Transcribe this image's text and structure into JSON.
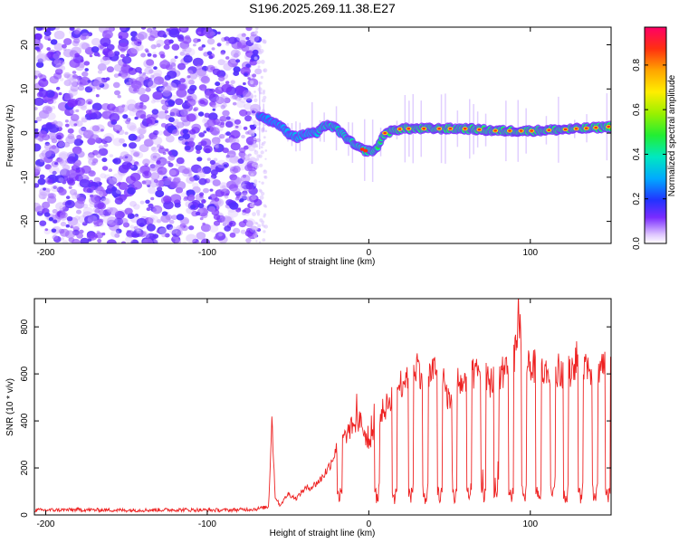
{
  "title": "S196.2025.269.11.38.E27",
  "chart_data": [
    {
      "type": "heatmap",
      "xlabel": "Height of straight line (km)",
      "ylabel": "Frequency (Hz)",
      "xlim": [
        -207,
        150
      ],
      "ylim": [
        -25,
        24
      ],
      "xticks": [
        -200,
        -100,
        0,
        100
      ],
      "yticks": [
        -20,
        -10,
        0,
        10,
        20
      ],
      "xtick_labels": [
        "-200",
        "-100",
        "0",
        "100"
      ],
      "ytick_labels": [
        "-20",
        "-10",
        "0",
        "10",
        "20"
      ],
      "noise_region_x": [
        -207,
        -68
      ],
      "trace": {
        "x": [
          -68,
          -62,
          -56,
          -50,
          -44,
          -38,
          -32,
          -26,
          -20,
          -14,
          -8,
          -2,
          4,
          10,
          20,
          40,
          60,
          80,
          100,
          120,
          140,
          150
        ],
        "freq": [
          4,
          3,
          2,
          0,
          -1,
          0,
          0,
          2,
          1,
          -1,
          -3,
          -4,
          -4,
          0,
          1,
          1,
          1,
          0.5,
          0.5,
          0.8,
          1.2,
          1.5
        ],
        "amplitude": [
          0.25,
          0.3,
          0.35,
          0.4,
          0.45,
          0.45,
          0.5,
          0.55,
          0.5,
          0.55,
          0.6,
          0.7,
          0.75,
          0.8,
          0.85,
          0.85,
          0.85,
          0.85,
          0.85,
          0.85,
          0.85,
          0.85
        ]
      },
      "colorbar": {
        "label": "Normalized spectral amplitude",
        "range": [
          0,
          0.97
        ],
        "ticks": [
          "0.0",
          "0.2",
          "0.4",
          "0.6",
          "0.8"
        ],
        "tick_values": [
          0.0,
          0.2,
          0.4,
          0.6,
          0.8
        ]
      }
    },
    {
      "type": "line",
      "xlabel": "Height of straight line (km)",
      "ylabel": "SNR (10 * v/v)",
      "xlim": [
        -207,
        150
      ],
      "ylim": [
        0,
        920
      ],
      "xticks": [
        -200,
        -100,
        0,
        100
      ],
      "yticks": [
        0,
        200,
        400,
        600,
        800
      ],
      "xtick_labels": [
        "-200",
        "-100",
        "0",
        "100"
      ],
      "ytick_labels": [
        "0",
        "200",
        "400",
        "600",
        "800"
      ],
      "color": "#ee2222",
      "series": [
        {
          "name": "SNR",
          "x": [
            -207,
            -180,
            -150,
            -120,
            -90,
            -70,
            -62,
            -60,
            -58,
            -55,
            -50,
            -45,
            -40,
            -35,
            -30,
            -25,
            -20,
            -15,
            -10,
            -5,
            0,
            5,
            10,
            15,
            20,
            25,
            30,
            35,
            40,
            45,
            50,
            55,
            60,
            65,
            70,
            75,
            80,
            85,
            90,
            93,
            95,
            100,
            105,
            110,
            115,
            120,
            125,
            130,
            135,
            140,
            145,
            150
          ],
          "y": [
            20,
            22,
            20,
            22,
            20,
            25,
            35,
            420,
            80,
            40,
            90,
            70,
            110,
            120,
            150,
            200,
            280,
            330,
            380,
            400,
            290,
            420,
            450,
            520,
            560,
            610,
            640,
            560,
            620,
            580,
            480,
            560,
            560,
            600,
            600,
            560,
            590,
            600,
            650,
            880,
            700,
            640,
            620,
            600,
            630,
            580,
            620,
            680,
            640,
            600,
            650,
            600
          ],
          "dips_x": [
            -18,
            5,
            16,
            26,
            35,
            44,
            53,
            62,
            71,
            79,
            88,
            96,
            105,
            114,
            122,
            131,
            140,
            148
          ]
        }
      ]
    }
  ]
}
